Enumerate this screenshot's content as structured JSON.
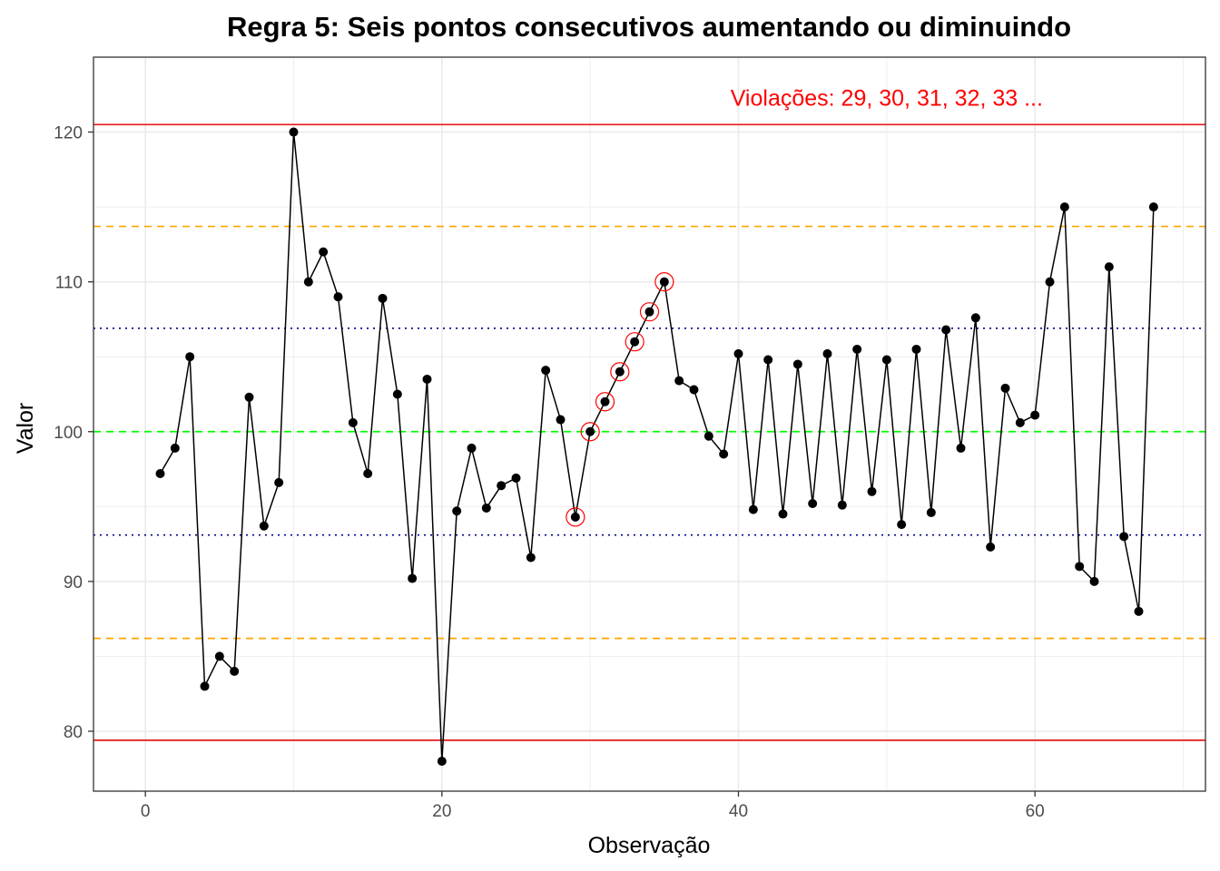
{
  "chart_data": {
    "type": "line",
    "title": "Regra 5: Seis pontos consecutivos aumentando ou diminuindo",
    "xlabel": "Observação",
    "ylabel": "Valor",
    "xlim": [
      -3.5,
      71.5
    ],
    "ylim": [
      76,
      125
    ],
    "x_ticks": [
      0,
      20,
      40,
      60
    ],
    "y_ticks": [
      80,
      90,
      100,
      110,
      120
    ],
    "grid": true,
    "series": [
      {
        "x": [
          1,
          2,
          3,
          4,
          5,
          6,
          7,
          8,
          9,
          10,
          11,
          12,
          13,
          14,
          15,
          16,
          17,
          18,
          19,
          20,
          21,
          22,
          23,
          24,
          25,
          26,
          27,
          28,
          29,
          30,
          31,
          32,
          33,
          34,
          35,
          36,
          37,
          38,
          39,
          40,
          41,
          42,
          43,
          44,
          45,
          46,
          47,
          48,
          49,
          50,
          51,
          52,
          53,
          54,
          55,
          56,
          57,
          58,
          59,
          60,
          61,
          62,
          63,
          64,
          65,
          66,
          67,
          68
        ],
        "values": [
          97.2,
          98.9,
          105,
          83,
          85,
          84,
          102.3,
          93.7,
          96.6,
          120,
          110,
          112,
          109,
          100.6,
          97.2,
          108.9,
          102.5,
          90.2,
          103.5,
          78,
          94.7,
          98.9,
          94.9,
          96.4,
          96.9,
          91.6,
          104.1,
          100.8,
          94.3,
          100,
          102,
          104,
          106,
          108,
          110,
          103.4,
          102.8,
          99.7,
          98.5,
          105.2,
          94.8,
          104.8,
          94.5,
          104.5,
          95.2,
          105.2,
          95.1,
          105.5,
          96,
          104.8,
          93.8,
          105.5,
          94.6,
          106.8,
          98.9,
          107.6,
          92.3,
          102.9,
          100.6,
          101.1,
          110,
          115,
          91,
          90,
          111,
          93,
          88,
          115
        ]
      }
    ],
    "violation_points": [
      29,
      30,
      31,
      32,
      33,
      34,
      35
    ],
    "reference_lines": [
      {
        "kind": "control-limit",
        "value": 120.5,
        "color": "#e41a1c",
        "style": "solid"
      },
      {
        "kind": "control-limit",
        "value": 79.4,
        "color": "#e41a1c",
        "style": "solid"
      },
      {
        "kind": "two-sigma",
        "value": 113.7,
        "color": "#ffa500",
        "style": "dashed"
      },
      {
        "kind": "two-sigma",
        "value": 86.2,
        "color": "#ffa500",
        "style": "dashed"
      },
      {
        "kind": "one-sigma",
        "value": 106.9,
        "color": "#00008b",
        "style": "dotted"
      },
      {
        "kind": "one-sigma",
        "value": 93.1,
        "color": "#00008b",
        "style": "dotted"
      },
      {
        "kind": "center",
        "value": 100,
        "color": "#00ff00",
        "style": "dashed"
      }
    ],
    "annotation": {
      "text": "Violações: 29, 30, 31, 32, 33 ...",
      "x": 50,
      "y": 122.3,
      "color": "#ff0000"
    },
    "colors": {
      "line": "#000000",
      "point": "#000000",
      "violation_ring": "#ff0000",
      "grid": "#ebebeb",
      "panel_border": "#333333"
    }
  }
}
